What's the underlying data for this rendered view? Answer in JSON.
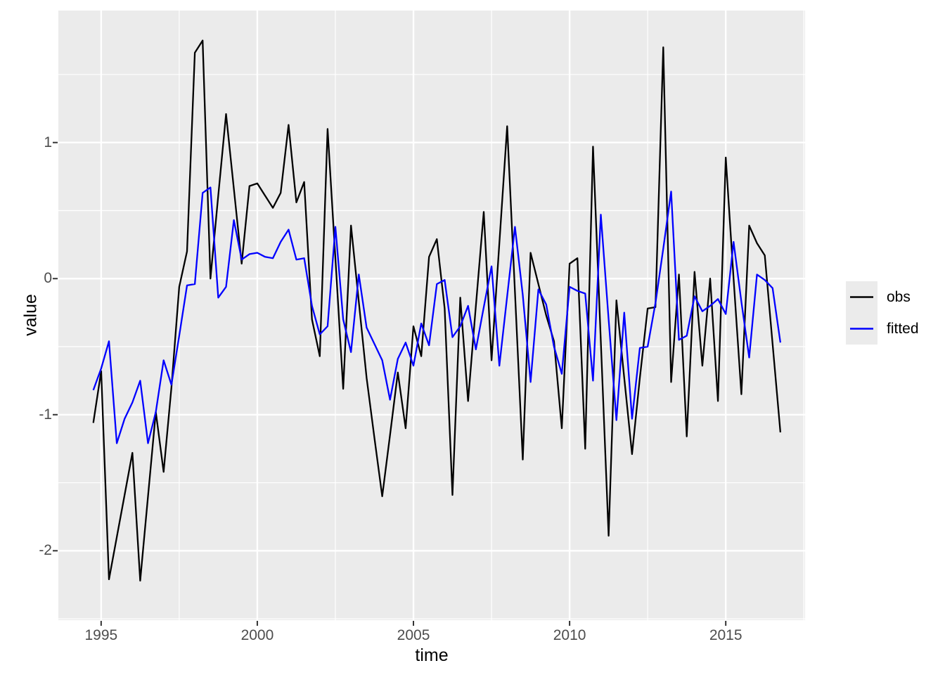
{
  "figure": {
    "bg": "#ffffff"
  },
  "panel": {
    "bg": "#ebebeb",
    "grid_color": "#ffffff",
    "tick_color": "#333333",
    "tick_label_color": "#4d4d4d"
  },
  "axes": {
    "x": {
      "title": "time",
      "breaks": [
        1995,
        2000,
        2005,
        2010,
        2015
      ],
      "tick_labels": [
        "1995",
        "2000",
        "2005",
        "2010",
        "2015"
      ],
      "minor_breaks": [
        1997.5,
        2002.5,
        2007.5,
        2012.5,
        2017.5
      ]
    },
    "y": {
      "title": "value",
      "breaks": [
        1,
        0,
        -1,
        -2
      ],
      "tick_labels": [
        "1",
        "0",
        "-1",
        "-2"
      ],
      "minor_breaks": [
        1.5,
        0.5,
        -0.5,
        -1.5,
        -2.5
      ]
    }
  },
  "legend": {
    "position": "right"
  },
  "chart_data": {
    "type": "line",
    "title": "",
    "xlabel": "time",
    "ylabel": "value",
    "xlim": [
      1993.63,
      2017.54
    ],
    "ylim": [
      -2.51,
      1.97
    ],
    "grid": true,
    "legend_position": "right",
    "x": [
      1994.75,
      1995,
      1995.25,
      1995.5,
      1995.75,
      1996,
      1996.25,
      1996.5,
      1996.75,
      1997,
      1997.25,
      1997.5,
      1997.75,
      1998,
      1998.25,
      1998.5,
      1998.75,
      1999,
      1999.25,
      1999.5,
      1999.75,
      2000,
      2000.25,
      2000.5,
      2000.75,
      2001,
      2001.25,
      2001.5,
      2001.75,
      2002,
      2002.25,
      2002.5,
      2002.75,
      2003,
      2003.25,
      2003.5,
      2003.75,
      2004,
      2004.25,
      2004.5,
      2004.75,
      2005,
      2005.25,
      2005.5,
      2005.75,
      2006,
      2006.25,
      2006.5,
      2006.75,
      2007,
      2007.25,
      2007.5,
      2007.75,
      2008,
      2008.25,
      2008.5,
      2008.75,
      2009,
      2009.25,
      2009.5,
      2009.75,
      2010,
      2010.25,
      2010.5,
      2010.75,
      2011,
      2011.25,
      2011.5,
      2011.75,
      2012,
      2012.25,
      2012.5,
      2012.75,
      2013,
      2013.25,
      2013.5,
      2013.75,
      2014,
      2014.25,
      2014.5,
      2014.75,
      2015,
      2015.25,
      2015.5,
      2015.75,
      2016,
      2016.25,
      2016.5,
      2016.75
    ],
    "series": [
      {
        "name": "obs",
        "color": "#000000",
        "values": [
          -1.06,
          -0.68,
          -2.21,
          -1.9,
          -1.59,
          -1.28,
          -2.22,
          -1.6,
          -0.98,
          -1.42,
          -0.8,
          -0.06,
          0.2,
          1.66,
          1.75,
          0.0,
          0.61,
          1.21,
          0.66,
          0.11,
          0.68,
          0.7,
          0.61,
          0.52,
          0.63,
          1.13,
          0.56,
          0.71,
          -0.3,
          -0.57,
          1.1,
          0.15,
          -0.81,
          0.39,
          -0.17,
          -0.73,
          -1.17,
          -1.6,
          -1.15,
          -0.69,
          -1.1,
          -0.35,
          -0.57,
          0.16,
          0.29,
          -0.22,
          -1.59,
          -0.14,
          -0.9,
          -0.2,
          0.49,
          -0.6,
          0.26,
          1.12,
          -0.1,
          -1.33,
          0.19,
          -0.04,
          -0.27,
          -0.46,
          -1.1,
          0.11,
          0.15,
          -1.25,
          0.97,
          -0.46,
          -1.89,
          -0.16,
          -0.73,
          -1.29,
          -0.73,
          -0.22,
          -0.21,
          1.7,
          -0.76,
          0.03,
          -1.16,
          0.05,
          -0.64,
          0.0,
          -0.9,
          0.89,
          0.0,
          -0.85,
          0.39,
          0.26,
          0.17,
          -0.48,
          -1.13
        ]
      },
      {
        "name": "fitted",
        "color": "#0000ff",
        "values": [
          -0.82,
          -0.66,
          -0.46,
          -1.21,
          -1.03,
          -0.91,
          -0.75,
          -1.21,
          -0.98,
          -0.6,
          -0.78,
          -0.42,
          -0.05,
          -0.04,
          0.63,
          0.67,
          -0.14,
          -0.06,
          0.43,
          0.14,
          0.18,
          0.19,
          0.16,
          0.15,
          0.27,
          0.36,
          0.14,
          0.15,
          -0.2,
          -0.41,
          -0.35,
          0.38,
          -0.3,
          -0.54,
          0.03,
          -0.36,
          -0.48,
          -0.6,
          -0.89,
          -0.59,
          -0.47,
          -0.64,
          -0.33,
          -0.49,
          -0.04,
          -0.01,
          -0.43,
          -0.35,
          -0.2,
          -0.52,
          -0.21,
          0.09,
          -0.64,
          -0.13,
          0.38,
          -0.12,
          -0.76,
          -0.08,
          -0.19,
          -0.5,
          -0.7,
          -0.06,
          -0.09,
          -0.11,
          -0.75,
          0.47,
          -0.3,
          -1.04,
          -0.25,
          -1.03,
          -0.51,
          -0.5,
          -0.18,
          0.22,
          0.64,
          -0.45,
          -0.42,
          -0.13,
          -0.24,
          -0.2,
          -0.15,
          -0.26,
          0.27,
          -0.17,
          -0.58,
          0.03,
          -0.01,
          -0.07,
          -0.47
        ]
      }
    ]
  }
}
